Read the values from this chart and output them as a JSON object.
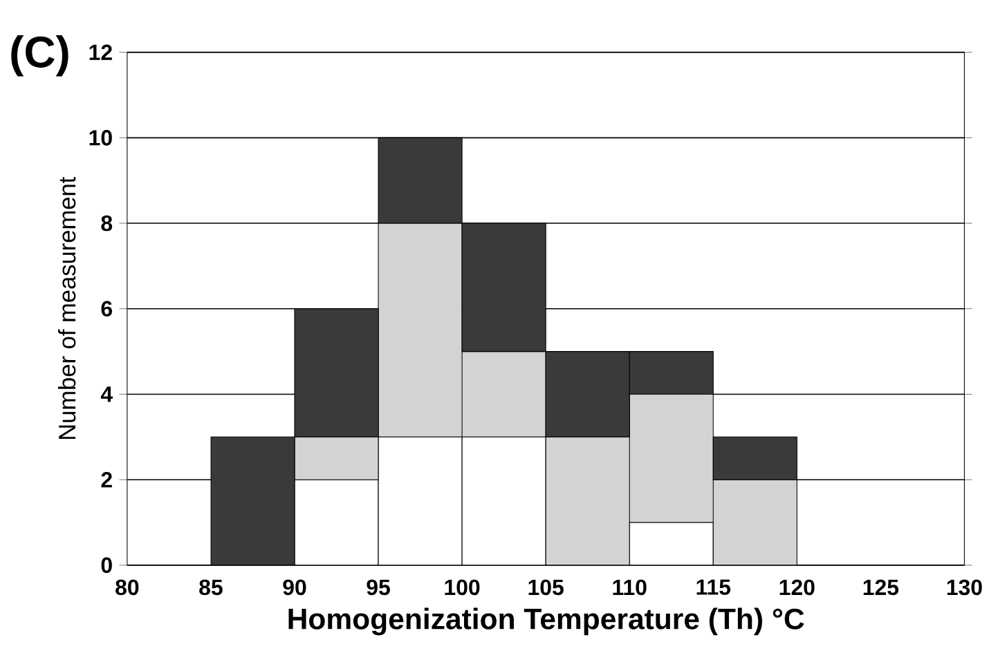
{
  "chart_data": {
    "type": "bar",
    "xlabel": "Homogenization Temperature (Th) °C",
    "ylabel": "Number of measurement",
    "annotations": [
      "(C)"
    ],
    "x": [
      87.5,
      92.5,
      97.5,
      102.5,
      107.5,
      112.5,
      117.5
    ],
    "stacked": true,
    "series": [
      {
        "color": "#ffffff",
        "values": [
          0,
          2,
          3,
          3,
          0,
          1,
          0
        ]
      },
      {
        "color": "#d3d3d3",
        "values": [
          0,
          1,
          5,
          2,
          3,
          3,
          2
        ]
      },
      {
        "color": "#3a3a3a",
        "values": [
          3,
          3,
          2,
          3,
          2,
          1,
          1
        ]
      }
    ],
    "xlim": [
      80,
      130
    ],
    "xticks": [
      80,
      85,
      90,
      95,
      100,
      105,
      110,
      115,
      120,
      125,
      130
    ],
    "ylim": [
      0,
      12
    ],
    "yticks": [
      0,
      2,
      4,
      6,
      8,
      10,
      12
    ],
    "grid": "y"
  }
}
